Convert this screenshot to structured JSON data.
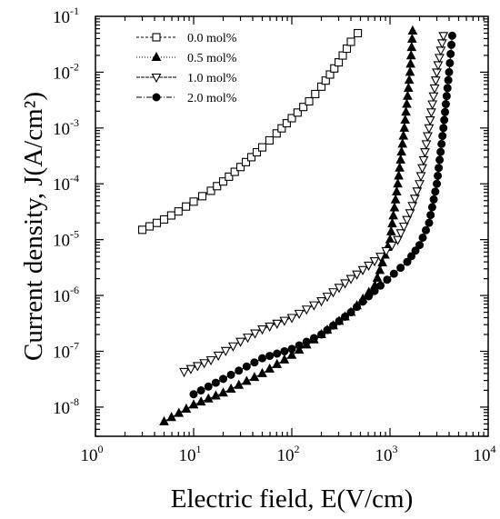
{
  "chart_data": {
    "type": "scatter",
    "title": "",
    "xlabel": "Electric field, E(V/cm)",
    "ylabel": "Current density, J(A/cm²)",
    "xscale": "log",
    "yscale": "log",
    "xlim": [
      1,
      10000
    ],
    "ylim": [
      3e-09,
      0.1
    ],
    "x_ticks": [
      {
        "value": 1,
        "base": "10",
        "exp": "0"
      },
      {
        "value": 10,
        "base": "10",
        "exp": "1"
      },
      {
        "value": 100,
        "base": "10",
        "exp": "2"
      },
      {
        "value": 1000,
        "base": "10",
        "exp": "3"
      },
      {
        "value": 10000,
        "base": "10",
        "exp": "4"
      }
    ],
    "y_ticks": [
      {
        "value": 1e-08,
        "base": "10",
        "exp": "-8"
      },
      {
        "value": 1e-07,
        "base": "10",
        "exp": "-7"
      },
      {
        "value": 1e-06,
        "base": "10",
        "exp": "-6"
      },
      {
        "value": 1e-05,
        "base": "10",
        "exp": "-5"
      },
      {
        "value": 0.0001,
        "base": "10",
        "exp": "-4"
      },
      {
        "value": 0.001,
        "base": "10",
        "exp": "-3"
      },
      {
        "value": 0.01,
        "base": "10",
        "exp": "-2"
      },
      {
        "value": 0.1,
        "base": "10",
        "exp": "-1"
      }
    ],
    "grid": false,
    "legend_position": "top-left",
    "series": [
      {
        "name": "0.0 mol%",
        "marker": "square-open",
        "x": [
          3,
          5,
          7,
          10,
          15,
          20,
          30,
          50,
          70,
          100,
          150,
          200,
          300,
          400,
          470
        ],
        "y": [
          1.5e-05,
          2.3e-05,
          3.2e-05,
          4.8e-05,
          7.5e-05,
          0.00011,
          0.0002,
          0.00045,
          0.0008,
          0.0015,
          0.003,
          0.0055,
          0.015,
          0.035,
          0.05
        ]
      },
      {
        "name": "0.5 mol%",
        "marker": "triangle-up-filled",
        "x": [
          5,
          10,
          20,
          50,
          100,
          200,
          400,
          700,
          1000,
          1200,
          1400,
          1600,
          1700
        ],
        "y": [
          5.5e-09,
          1.1e-08,
          1.8e-08,
          4e-08,
          8.5e-08,
          2e-07,
          5e-07,
          1.5e-06,
          1e-05,
          0.0001,
          0.001,
          0.01,
          0.055
        ]
      },
      {
        "name": "1.0 mol%",
        "marker": "triangle-down-open",
        "x": [
          8,
          15,
          30,
          50,
          100,
          200,
          400,
          800,
          1200,
          1600,
          2000,
          2500,
          3000,
          3500
        ],
        "y": [
          4.3e-08,
          7e-08,
          1.5e-07,
          2.5e-07,
          4e-07,
          8e-07,
          2e-06,
          5e-06,
          1e-05,
          3e-05,
          0.0001,
          0.001,
          0.01,
          0.045
        ]
      },
      {
        "name": "2.0 mol%",
        "marker": "circle-filled",
        "x": [
          10,
          20,
          50,
          100,
          200,
          400,
          800,
          1500,
          2000,
          2500,
          3000,
          3500,
          4000,
          4300
        ],
        "y": [
          1.7e-08,
          3.2e-08,
          7.5e-08,
          1.1e-07,
          2e-07,
          5e-07,
          1.5e-06,
          4e-06,
          8e-06,
          2e-05,
          0.0001,
          0.001,
          0.01,
          0.045
        ]
      }
    ]
  }
}
